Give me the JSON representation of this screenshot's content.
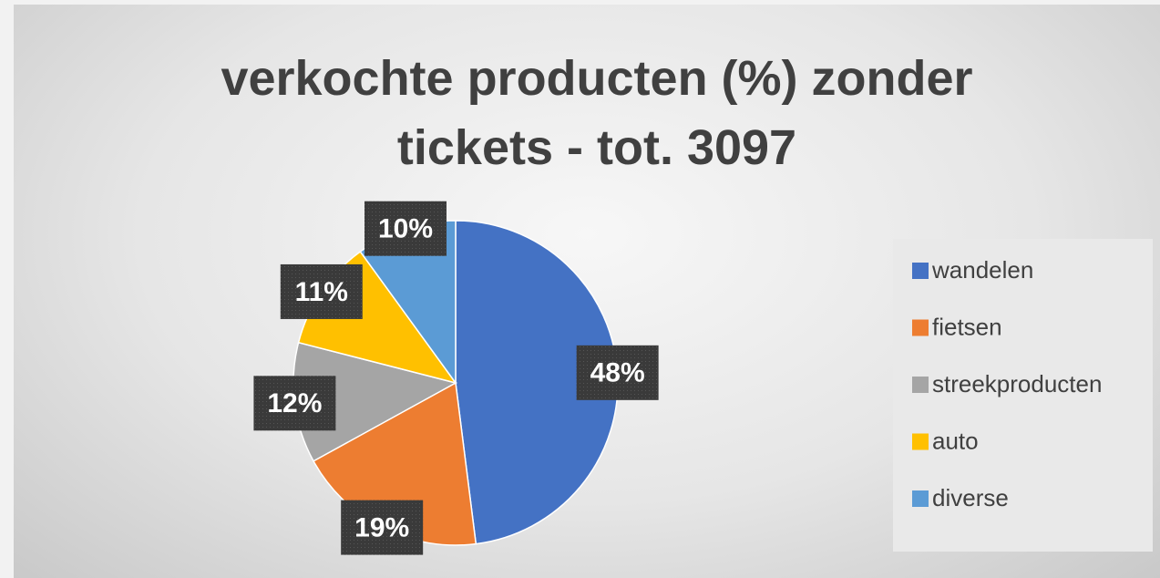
{
  "chart_data": {
    "type": "pie",
    "title": "verkochte producten (%) zonder tickets - tot. 3097",
    "categories": [
      "wandelen",
      "fietsen",
      "streekproducten",
      "auto",
      "diverse"
    ],
    "values": [
      48,
      19,
      12,
      11,
      10
    ],
    "value_labels": [
      "48%",
      "19%",
      "12%",
      "11%",
      "10%"
    ],
    "colors": [
      "#4472c4",
      "#ed7d31",
      "#a5a5a5",
      "#ffc000",
      "#5b9bd5"
    ],
    "legend": "right"
  }
}
